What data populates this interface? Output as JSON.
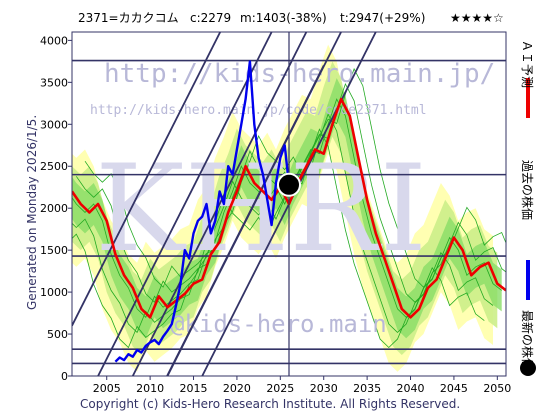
{
  "header": {
    "code_name": "2371=カカクコム",
    "current": "c:2279",
    "min": "m:1403(-38%)",
    "target": "t:2947(+29%)",
    "stars": "★★★★☆"
  },
  "side_text": "Generated on Monday 2026/1/5.",
  "footer": "Copyright (c) Kids-Hero Research Institute. All Rights Reserved.",
  "watermarks": {
    "url_main": "http://kids-hero.main.jp/",
    "url_code": "http://kids-hero.main.jp/code/code2371.html",
    "at": "@kids-hero.main",
    "big": "KHRI"
  },
  "legend": [
    {
      "label": "ＡＩ予測",
      "color": "#ee0000",
      "marker": "line"
    },
    {
      "label": "過去の株価",
      "color": "#0000ee",
      "marker": "line"
    },
    {
      "label": "最新の株価",
      "color": "#000000",
      "marker": "dot"
    }
  ],
  "colors": {
    "frame": "#333366",
    "band_outer": "#ffffaa",
    "band_mid": "#ccee88",
    "band_inner": "#88dd66",
    "band_line": "#22aa22"
  },
  "chart_data": {
    "type": "line",
    "x_ticks": [
      "2005",
      "2010",
      "2015",
      "2020",
      "2025",
      "2030",
      "2035",
      "2040",
      "2045",
      "2050"
    ],
    "y_ticks": [
      "0",
      "500",
      "1000",
      "1500",
      "2000",
      "2500",
      "3000",
      "3500",
      "4000"
    ],
    "xlim": [
      2001,
      2051
    ],
    "ylim": [
      0,
      4100
    ],
    "horizontal_lines": [
      150,
      320,
      1430,
      2400,
      3760
    ],
    "latest": {
      "x": 2026.0,
      "y": 2279
    },
    "vertical_marker_x": 2026.0,
    "series": [
      {
        "name": "過去の株価",
        "color": "#0000ee",
        "points": [
          [
            2006.0,
            170
          ],
          [
            2006.5,
            220
          ],
          [
            2007.0,
            190
          ],
          [
            2007.5,
            260
          ],
          [
            2008.0,
            230
          ],
          [
            2008.5,
            310
          ],
          [
            2009.0,
            280
          ],
          [
            2009.5,
            360
          ],
          [
            2010.0,
            400
          ],
          [
            2010.5,
            430
          ],
          [
            2011.0,
            380
          ],
          [
            2011.5,
            470
          ],
          [
            2012.0,
            540
          ],
          [
            2012.5,
            620
          ],
          [
            2013.0,
            850
          ],
          [
            2013.5,
            1100
          ],
          [
            2014.0,
            1500
          ],
          [
            2014.5,
            1400
          ],
          [
            2015.0,
            1700
          ],
          [
            2015.5,
            1850
          ],
          [
            2016.0,
            1900
          ],
          [
            2016.5,
            2050
          ],
          [
            2017.0,
            1700
          ],
          [
            2017.5,
            1850
          ],
          [
            2018.0,
            2200
          ],
          [
            2018.5,
            2050
          ],
          [
            2019.0,
            2500
          ],
          [
            2019.5,
            2400
          ],
          [
            2020.0,
            2700
          ],
          [
            2020.5,
            3000
          ],
          [
            2021.0,
            3300
          ],
          [
            2021.5,
            3750
          ],
          [
            2022.0,
            3000
          ],
          [
            2022.5,
            2600
          ],
          [
            2023.0,
            2400
          ],
          [
            2023.5,
            2100
          ],
          [
            2024.0,
            1800
          ],
          [
            2024.5,
            2300
          ],
          [
            2025.0,
            2600
          ],
          [
            2025.5,
            2750
          ],
          [
            2026.0,
            2279
          ]
        ]
      },
      {
        "name": "ＡＩ予測",
        "color": "#ee0000",
        "points": [
          [
            2001,
            2200
          ],
          [
            2002,
            2050
          ],
          [
            2003,
            1950
          ],
          [
            2004,
            2050
          ],
          [
            2005,
            1850
          ],
          [
            2006,
            1450
          ],
          [
            2007,
            1200
          ],
          [
            2008,
            1050
          ],
          [
            2009,
            800
          ],
          [
            2010,
            700
          ],
          [
            2011,
            950
          ],
          [
            2012,
            820
          ],
          [
            2013,
            900
          ],
          [
            2014,
            980
          ],
          [
            2015,
            1100
          ],
          [
            2016,
            1150
          ],
          [
            2017,
            1450
          ],
          [
            2018,
            1600
          ],
          [
            2019,
            1950
          ],
          [
            2020,
            2200
          ],
          [
            2021,
            2500
          ],
          [
            2022,
            2300
          ],
          [
            2023,
            2200
          ],
          [
            2024,
            2100
          ],
          [
            2025,
            2250
          ],
          [
            2026,
            2050
          ],
          [
            2027,
            2300
          ],
          [
            2028,
            2500
          ],
          [
            2029,
            2700
          ],
          [
            2030,
            2650
          ],
          [
            2031,
            3000
          ],
          [
            2032,
            3300
          ],
          [
            2033,
            3100
          ],
          [
            2034,
            2600
          ],
          [
            2035,
            2100
          ],
          [
            2036,
            1700
          ],
          [
            2037,
            1400
          ],
          [
            2038,
            1100
          ],
          [
            2039,
            800
          ],
          [
            2040,
            700
          ],
          [
            2041,
            800
          ],
          [
            2042,
            1050
          ],
          [
            2043,
            1150
          ],
          [
            2044,
            1400
          ],
          [
            2045,
            1650
          ],
          [
            2046,
            1500
          ],
          [
            2047,
            1200
          ],
          [
            2048,
            1300
          ],
          [
            2049,
            1350
          ],
          [
            2050,
            1100
          ],
          [
            2051,
            1020
          ]
        ]
      }
    ]
  }
}
